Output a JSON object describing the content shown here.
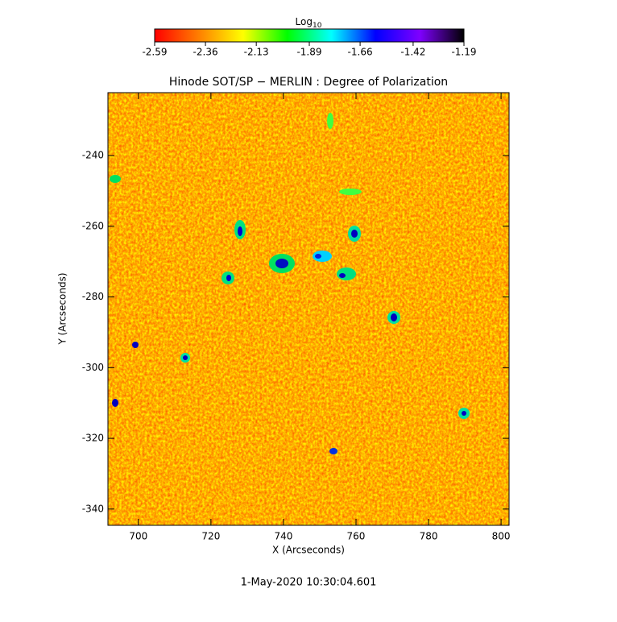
{
  "chart_data": {
    "type": "heatmap",
    "title": "Hinode SOT/SP − MERLIN : Degree of Polarization",
    "x_label": "X (Arcseconds)",
    "y_label": "Y (Arcseconds)",
    "footer": "1-May-2020 10:30:04.601",
    "xlim": [
      691.6,
      802.2
    ],
    "xticks": [
      700,
      720,
      740,
      760,
      780,
      800
    ],
    "ylim": [
      -344.6,
      -222.2
    ],
    "yticks": [
      -240,
      -260,
      -280,
      -300,
      -320,
      -340
    ],
    "colorbar": {
      "label": "Log",
      "label_subscript": "10",
      "lim": [
        -2.59,
        -1.19
      ],
      "ticks": [
        -2.59,
        -2.36,
        -2.13,
        -1.89,
        -1.66,
        -1.42,
        -1.19
      ],
      "colors": [
        "#ff0000",
        "#ff7f00",
        "#ffff00",
        "#00ff00",
        "#00ffff",
        "#0000ff",
        "#7f00ff",
        "#000000"
      ]
    }
  }
}
